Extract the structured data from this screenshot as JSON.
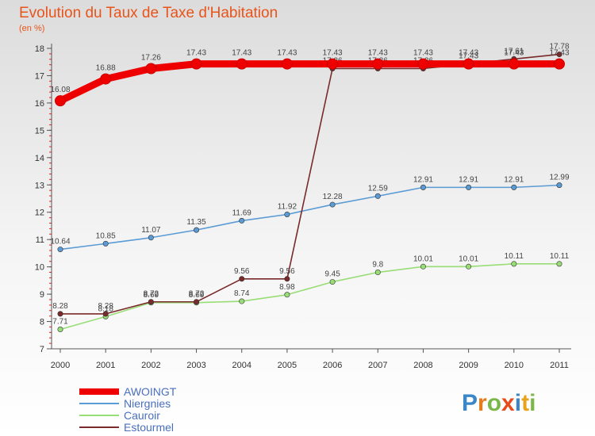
{
  "header": {
    "title": "Evolution du Taux de Taxe d'Habitation",
    "subtitle": "(en %)"
  },
  "brand": {
    "letters": [
      "P",
      "r",
      "o",
      "x",
      "i",
      "t",
      "i"
    ],
    "colors": [
      "#3a86c8",
      "#e87a1e",
      "#7ab648",
      "#e84a1a",
      "#3a86c8",
      "#e8a21e",
      "#7ab648"
    ]
  },
  "chart_data": {
    "type": "line",
    "title": "Evolution du Taux de Taxe d'Habitation",
    "ylabel": "(en %)",
    "xlabel": "",
    "categories": [
      "2000",
      "2001",
      "2002",
      "2003",
      "2004",
      "2005",
      "2006",
      "2007",
      "2008",
      "2009",
      "2010",
      "2011"
    ],
    "ylim": [
      7,
      18
    ],
    "yticks": [
      7,
      8,
      9,
      10,
      11,
      12,
      13,
      14,
      15,
      16,
      17,
      18
    ],
    "grid": false,
    "legend_position": "bottom-left",
    "series": [
      {
        "name": "AWOINGT",
        "color": "#ee0000",
        "values": [
          16.08,
          16.88,
          17.26,
          17.43,
          17.43,
          17.43,
          17.43,
          17.43,
          17.43,
          17.43,
          17.43,
          17.43
        ],
        "labels": [
          "16.08",
          "16.88",
          "17.26",
          "17.43",
          "17.43",
          "17.43",
          "17.43",
          "17.43",
          "17.43",
          "17.43",
          "17.43",
          "17.43"
        ]
      },
      {
        "name": "Niergnies",
        "color": "#5b9bd5",
        "values": [
          10.64,
          10.85,
          11.07,
          11.35,
          11.69,
          11.92,
          12.28,
          12.59,
          12.91,
          12.91,
          12.91,
          12.99
        ],
        "labels": [
          "10.64",
          "10.85",
          "11.07",
          "11.35",
          "11.69",
          "11.92",
          "12.28",
          "12.59",
          "12.91",
          "12.91",
          "12.91",
          "12.99"
        ]
      },
      {
        "name": "Cauroir",
        "color": "#99dd77",
        "values": [
          7.71,
          8.18,
          8.69,
          8.69,
          8.74,
          8.98,
          9.45,
          9.8,
          10.01,
          10.01,
          10.11,
          10.11
        ],
        "labels": [
          "7.71",
          "8.18",
          "8.69",
          "8.69",
          "8.74",
          "8.98",
          "9.45",
          "9.8",
          "10.01",
          "10.01",
          "10.11",
          "10.11"
        ]
      },
      {
        "name": "Estourmel",
        "color": "#7a2a2a",
        "values": [
          8.28,
          8.28,
          8.72,
          8.72,
          9.56,
          9.56,
          17.26,
          17.26,
          17.26,
          17.43,
          17.61,
          17.78
        ],
        "labels": [
          "8.28",
          "8.28",
          "8.72",
          "8.72",
          "9.56",
          "9.56",
          "17.26",
          "17.26",
          "17.26",
          "17.43",
          "17.61",
          "17.78"
        ]
      }
    ]
  }
}
